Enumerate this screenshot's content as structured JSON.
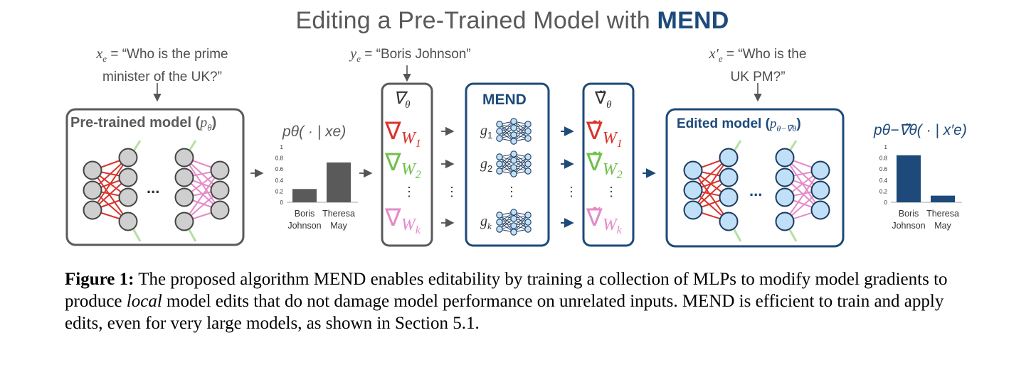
{
  "title": {
    "prefix": "Editing a Pre-Trained Model with",
    "emph": "MEND"
  },
  "inputs": {
    "xe_lhs": "x",
    "xe_sub": "e",
    "xe_text": " = “Who is the prime",
    "xe_text2": "minister of the UK?”",
    "ye_lhs": "y",
    "ye_sub": "e",
    "ye_text": " = “Boris Johnson”",
    "xep_lhs": "x′",
    "xep_sub": "e",
    "xep_text": " = “Who is the",
    "xep_text2": "UK PM?”"
  },
  "pretrained_box": {
    "label": "Pre-trained model (",
    "param": "p",
    "param_sub": "θ",
    "close": ")",
    "ellipsis": "..."
  },
  "edited_box": {
    "label": "Edited model (",
    "param": "p",
    "param_sub": "θ−∇̃θ",
    "close": ")",
    "ellipsis": "..."
  },
  "grad_box": {
    "header": "∇",
    "header_sub": "θ",
    "w1": "W",
    "w1_sub": "1",
    "w2": "W",
    "w2_sub": "2",
    "wk": "W",
    "wk_sub": "k",
    "dots": "⋮"
  },
  "mend_box": {
    "header": "MEND",
    "g1": "g",
    "g1_sub": "1",
    "g2": "g",
    "g2_sub": "2",
    "gk": "g",
    "gk_sub": "k",
    "dots": "⋮"
  },
  "tgrad_box": {
    "header": "∇̃",
    "header_sub": "θ"
  },
  "between_dots": "⋮",
  "colors": {
    "gray_box": "#5a5a5a",
    "navy": "#1d4a7a",
    "red": "#d9342b",
    "green": "#6fc04a",
    "pink": "#e58ac8",
    "node_gray": "#cfcfcf",
    "node_blue": "#bfe0f7"
  },
  "chart_data": [
    {
      "type": "bar",
      "title": "pθ( · | xe)",
      "categories": [
        "Boris Johnson",
        "Theresa May"
      ],
      "category_lines": [
        [
          "Boris",
          "Johnson"
        ],
        [
          "Theresa",
          "May"
        ]
      ],
      "values": [
        0.24,
        0.72
      ],
      "ylim": [
        0,
        1
      ],
      "yticks": [
        "0",
        "0.2",
        "0.4",
        "0.6",
        "0.8",
        "1"
      ],
      "color": "#5a5a5a"
    },
    {
      "type": "bar",
      "title": "pθ−∇̃θ( · | x′e)",
      "categories": [
        "Boris Johnson",
        "Theresa May"
      ],
      "category_lines": [
        [
          "Boris",
          "Johnson"
        ],
        [
          "Theresa",
          "May"
        ]
      ],
      "values": [
        0.85,
        0.12
      ],
      "ylim": [
        0,
        1
      ],
      "yticks": [
        "0",
        "0.2",
        "0.4",
        "0.6",
        "0.8",
        "1"
      ],
      "color": "#1d4a7a"
    }
  ],
  "caption": {
    "label": "Figure 1:",
    "p1": " The proposed algorithm MEND enables editability by training a collection of MLPs to modify model gradients to produce ",
    "em": "local",
    "p2": " model edits that do not damage model performance on unrelated inputs.  MEND is efficient to train and apply edits, even for very large models, as shown in Section 5.1."
  }
}
